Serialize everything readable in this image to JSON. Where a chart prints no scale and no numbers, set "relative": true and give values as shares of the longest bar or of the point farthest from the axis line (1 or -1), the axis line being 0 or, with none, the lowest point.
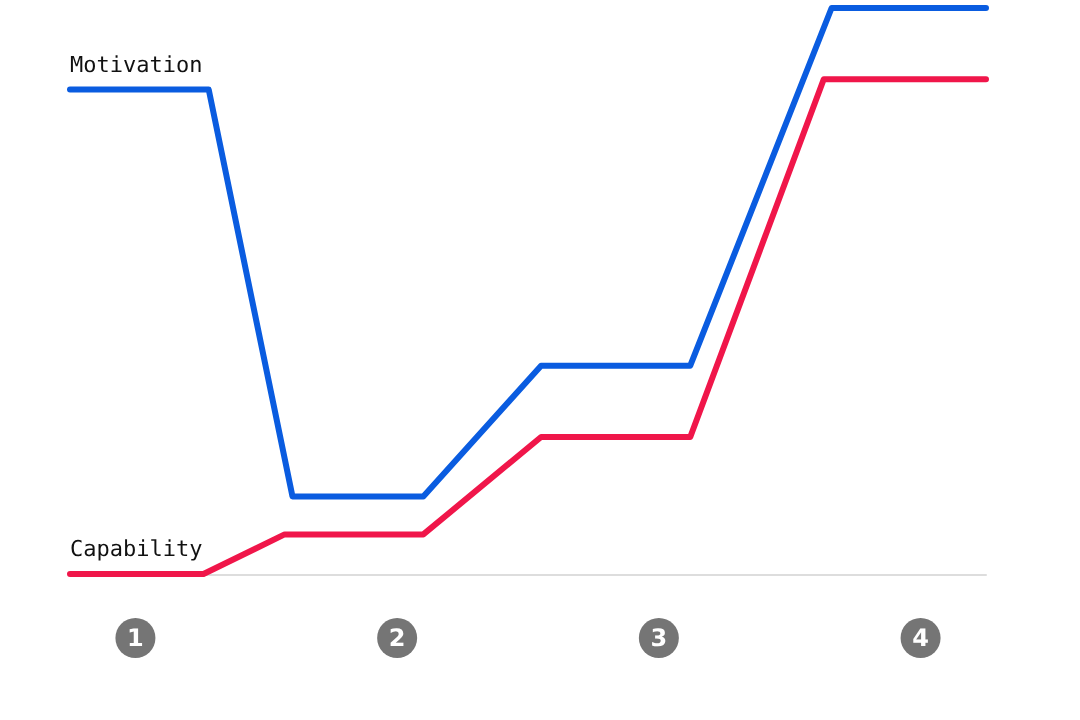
{
  "chart_data": {
    "type": "line",
    "relative": true,
    "xlim": [
      0.75,
      4.25
    ],
    "xticks": [
      1,
      2,
      3,
      4
    ],
    "marker": "none",
    "line_style": "solid",
    "grid": false,
    "series": [
      {
        "name": "Motivation",
        "color": "#0a5ce0",
        "x": [
          0.75,
          1.28,
          1.6,
          2.1,
          2.55,
          3.12,
          3.66,
          4.25
        ],
        "values": [
          0.856,
          0.856,
          0.137,
          0.137,
          0.368,
          0.368,
          1,
          1
        ]
      },
      {
        "name": "Capability",
        "color": "#f0164a",
        "x": [
          0.75,
          1.26,
          1.57,
          2.1,
          2.55,
          3.12,
          3.63,
          4.25
        ],
        "values": [
          0,
          0,
          0.07,
          0.07,
          0.242,
          0.242,
          0.874,
          0.874
        ]
      }
    ]
  }
}
